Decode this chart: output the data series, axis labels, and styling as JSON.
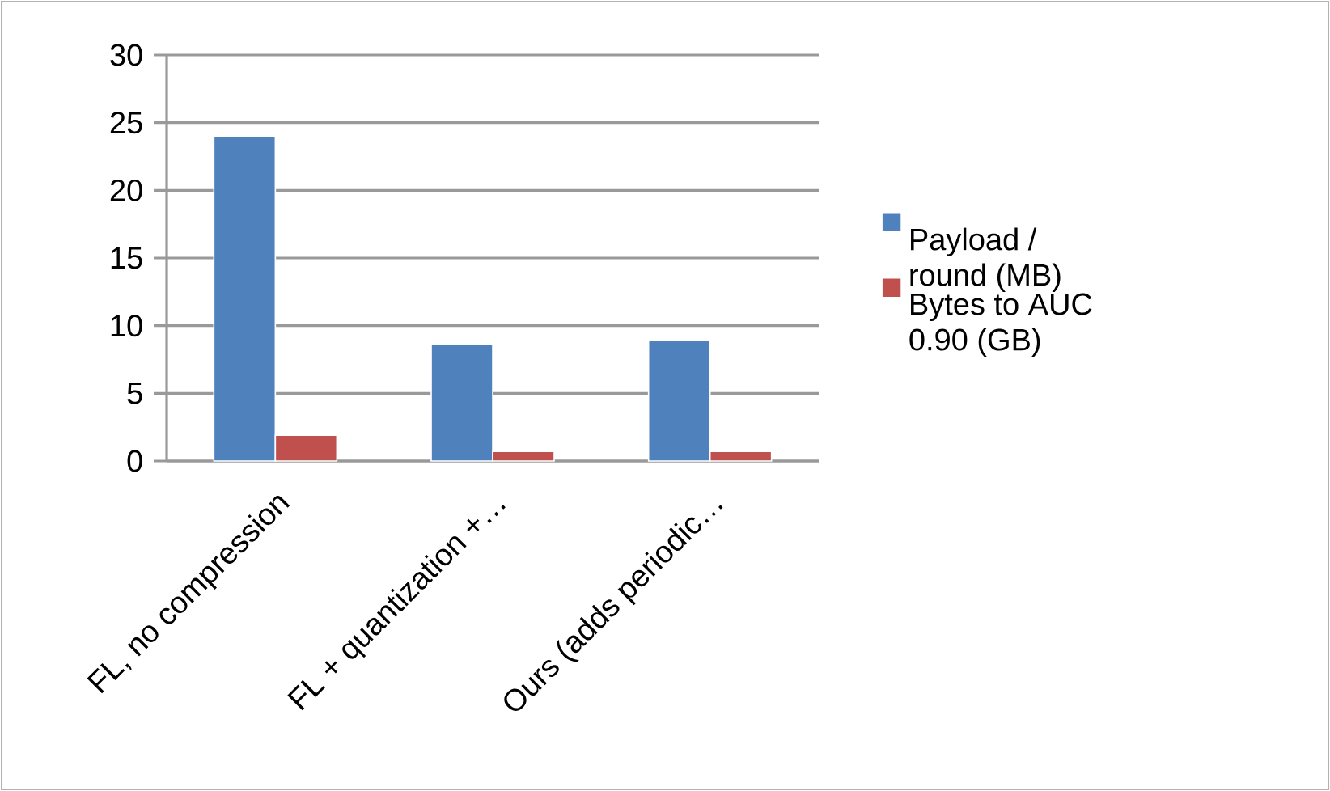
{
  "chart_data": {
    "type": "bar",
    "categories": [
      "FL, no compression",
      "FL + quantization +…",
      "Ours (adds periodic…"
    ],
    "series": [
      {
        "name": "Payload / round (MB)",
        "color": "#4f81bd",
        "values": [
          24,
          8.6,
          8.9
        ]
      },
      {
        "name": "Bytes to AUC 0.90 (GB)",
        "color": "#c0504d",
        "values": [
          1.9,
          0.7,
          0.7
        ]
      }
    ],
    "ylim": [
      0,
      30
    ],
    "yticks": [
      0,
      5,
      10,
      15,
      20,
      25,
      30
    ],
    "grid": "y",
    "legend": "right"
  }
}
